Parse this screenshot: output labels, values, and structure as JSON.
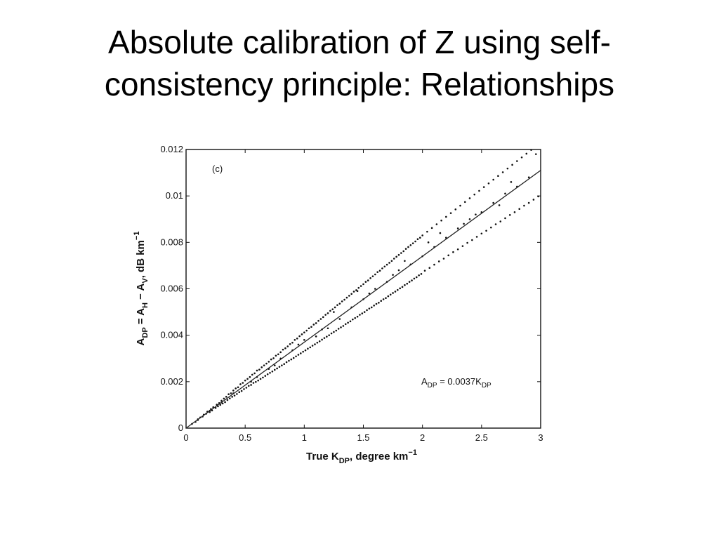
{
  "slide": {
    "title_line1": "Absolute calibration of Z using self-",
    "title_line2": "consistency principle: Relationships"
  },
  "chart_data": {
    "type": "scatter",
    "panel_label": "(c)",
    "xlabel": {
      "main": "True K",
      "sub": "DP",
      "rest": ", degree km",
      "sup": "−1"
    },
    "ylabel": {
      "a": "A",
      "a_sub": "DP",
      "b": " = A",
      "b_sub": "H",
      "c": " − A",
      "c_sub": "V",
      "d": ", dB km",
      "d_sup": "−1"
    },
    "xlim": [
      0,
      3
    ],
    "ylim": [
      0,
      0.012
    ],
    "xticks": [
      "0",
      "0.5",
      "1",
      "1.5",
      "2",
      "2.5",
      "3"
    ],
    "yticks": [
      "0",
      "0.002",
      "0.004",
      "0.006",
      "0.008",
      "0.01",
      "0.012"
    ],
    "fit_line": {
      "slope": 0.0037,
      "points": [
        [
          0,
          0
        ],
        [
          3,
          0.0111
        ]
      ]
    },
    "annotation": {
      "a": "A",
      "a_sub": "DP",
      "eq": " = 0.0037K",
      "k_sub": "DP"
    },
    "points": [
      [
        0.05,
        0.00018
      ],
      [
        0.08,
        0.00027
      ],
      [
        0.1,
        0.00035
      ],
      [
        0.12,
        0.00046
      ],
      [
        0.14,
        0.0005
      ],
      [
        0.15,
        0.00058
      ],
      [
        0.17,
        0.00062
      ],
      [
        0.18,
        0.00071
      ],
      [
        0.2,
        0.00069
      ],
      [
        0.21,
        0.00082
      ],
      [
        0.22,
        0.00076
      ],
      [
        0.23,
        0.0009
      ],
      [
        0.25,
        0.00087
      ],
      [
        0.26,
        0.00101
      ],
      [
        0.27,
        0.00094
      ],
      [
        0.28,
        0.00108
      ],
      [
        0.29,
        0.001
      ],
      [
        0.3,
        0.00118
      ],
      [
        0.31,
        0.00106
      ],
      [
        0.32,
        0.00127
      ],
      [
        0.33,
        0.00112
      ],
      [
        0.34,
        0.00135
      ],
      [
        0.35,
        0.00121
      ],
      [
        0.36,
        0.00146
      ],
      [
        0.37,
        0.00128
      ],
      [
        0.38,
        0.0015
      ],
      [
        0.39,
        0.00135
      ],
      [
        0.4,
        0.00162
      ],
      [
        0.41,
        0.0014
      ],
      [
        0.42,
        0.00171
      ],
      [
        0.43,
        0.00147
      ],
      [
        0.44,
        0.00176
      ],
      [
        0.45,
        0.00155
      ],
      [
        0.46,
        0.00189
      ],
      [
        0.47,
        0.0016
      ],
      [
        0.48,
        0.00195
      ],
      [
        0.49,
        0.00168
      ],
      [
        0.5,
        0.00205
      ],
      [
        0.51,
        0.00174
      ],
      [
        0.52,
        0.00212
      ],
      [
        0.53,
        0.00182
      ],
      [
        0.54,
        0.0022
      ],
      [
        0.55,
        0.00186
      ],
      [
        0.56,
        0.0023
      ],
      [
        0.57,
        0.00195
      ],
      [
        0.58,
        0.00236
      ],
      [
        0.59,
        0.00199
      ],
      [
        0.6,
        0.00248
      ],
      [
        0.61,
        0.00205
      ],
      [
        0.62,
        0.00252
      ],
      [
        0.63,
        0.00212
      ],
      [
        0.64,
        0.00262
      ],
      [
        0.65,
        0.00218
      ],
      [
        0.66,
        0.0027
      ],
      [
        0.67,
        0.00225
      ],
      [
        0.68,
        0.00278
      ],
      [
        0.69,
        0.00232
      ],
      [
        0.7,
        0.00286
      ],
      [
        0.71,
        0.00238
      ],
      [
        0.72,
        0.00296
      ],
      [
        0.73,
        0.00244
      ],
      [
        0.74,
        0.00301
      ],
      [
        0.75,
        0.00251
      ],
      [
        0.76,
        0.00312
      ],
      [
        0.77,
        0.00257
      ],
      [
        0.78,
        0.00318
      ],
      [
        0.79,
        0.00264
      ],
      [
        0.8,
        0.00327
      ],
      [
        0.81,
        0.0027
      ],
      [
        0.82,
        0.00338
      ],
      [
        0.83,
        0.00276
      ],
      [
        0.84,
        0.00344
      ],
      [
        0.85,
        0.00284
      ],
      [
        0.86,
        0.00352
      ],
      [
        0.87,
        0.0029
      ],
      [
        0.88,
        0.00362
      ],
      [
        0.89,
        0.00296
      ],
      [
        0.9,
        0.00368
      ],
      [
        0.91,
        0.00302
      ],
      [
        0.92,
        0.0038
      ],
      [
        0.93,
        0.00309
      ],
      [
        0.94,
        0.00386
      ],
      [
        0.95,
        0.00316
      ],
      [
        0.96,
        0.00396
      ],
      [
        0.97,
        0.00322
      ],
      [
        0.98,
        0.00404
      ],
      [
        0.99,
        0.00329
      ],
      [
        1.0,
        0.00412
      ],
      [
        1.01,
        0.00335
      ],
      [
        1.02,
        0.0042
      ],
      [
        1.03,
        0.00342
      ],
      [
        1.04,
        0.0043
      ],
      [
        1.05,
        0.00348
      ],
      [
        1.06,
        0.00436
      ],
      [
        1.07,
        0.00355
      ],
      [
        1.08,
        0.00446
      ],
      [
        1.09,
        0.00361
      ],
      [
        1.1,
        0.00452
      ],
      [
        1.11,
        0.00368
      ],
      [
        1.12,
        0.00462
      ],
      [
        1.13,
        0.00374
      ],
      [
        1.14,
        0.0047
      ],
      [
        1.15,
        0.00381
      ],
      [
        1.16,
        0.00478
      ],
      [
        1.17,
        0.00388
      ],
      [
        1.18,
        0.00488
      ],
      [
        1.19,
        0.00394
      ],
      [
        1.2,
        0.00495
      ],
      [
        1.21,
        0.004
      ],
      [
        1.22,
        0.00505
      ],
      [
        1.23,
        0.00408
      ],
      [
        1.24,
        0.00512
      ],
      [
        1.25,
        0.00414
      ],
      [
        1.26,
        0.0052
      ],
      [
        1.27,
        0.0042
      ],
      [
        1.28,
        0.0053
      ],
      [
        1.29,
        0.00428
      ],
      [
        1.3,
        0.00536
      ],
      [
        1.31,
        0.00434
      ],
      [
        1.32,
        0.00546
      ],
      [
        1.33,
        0.0044
      ],
      [
        1.34,
        0.00553
      ],
      [
        1.35,
        0.00448
      ],
      [
        1.36,
        0.00562
      ],
      [
        1.37,
        0.00454
      ],
      [
        1.38,
        0.0057
      ],
      [
        1.39,
        0.0046
      ],
      [
        1.4,
        0.00578
      ],
      [
        1.41,
        0.00468
      ],
      [
        1.42,
        0.00588
      ],
      [
        1.43,
        0.00474
      ],
      [
        1.44,
        0.00594
      ],
      [
        1.45,
        0.0048
      ],
      [
        1.46,
        0.00604
      ],
      [
        1.47,
        0.00488
      ],
      [
        1.48,
        0.00612
      ],
      [
        1.49,
        0.00494
      ],
      [
        1.5,
        0.0062
      ],
      [
        1.51,
        0.005
      ],
      [
        1.52,
        0.0063
      ],
      [
        1.53,
        0.00508
      ],
      [
        1.54,
        0.00636
      ],
      [
        1.55,
        0.00515
      ],
      [
        1.56,
        0.00646
      ],
      [
        1.57,
        0.0052
      ],
      [
        1.58,
        0.00654
      ],
      [
        1.59,
        0.00528
      ],
      [
        1.6,
        0.00662
      ],
      [
        1.61,
        0.00535
      ],
      [
        1.62,
        0.00672
      ],
      [
        1.63,
        0.0054
      ],
      [
        1.64,
        0.00678
      ],
      [
        1.65,
        0.00548
      ],
      [
        1.66,
        0.00688
      ],
      [
        1.67,
        0.00555
      ],
      [
        1.68,
        0.00696
      ],
      [
        1.69,
        0.0056
      ],
      [
        1.7,
        0.00704
      ],
      [
        1.71,
        0.00568
      ],
      [
        1.72,
        0.00712
      ],
      [
        1.73,
        0.00575
      ],
      [
        1.74,
        0.0072
      ],
      [
        1.75,
        0.00582
      ],
      [
        1.76,
        0.0073
      ],
      [
        1.77,
        0.00588
      ],
      [
        1.78,
        0.00738
      ],
      [
        1.79,
        0.00595
      ],
      [
        1.8,
        0.00746
      ],
      [
        1.81,
        0.00602
      ],
      [
        1.82,
        0.00754
      ],
      [
        1.83,
        0.00608
      ],
      [
        1.84,
        0.00762
      ],
      [
        1.85,
        0.00616
      ],
      [
        1.86,
        0.00772
      ],
      [
        1.87,
        0.00622
      ],
      [
        1.88,
        0.0078
      ],
      [
        1.89,
        0.0063
      ],
      [
        1.9,
        0.00788
      ],
      [
        1.91,
        0.00636
      ],
      [
        1.92,
        0.00796
      ],
      [
        1.93,
        0.00644
      ],
      [
        1.94,
        0.00804
      ],
      [
        1.95,
        0.0065
      ],
      [
        1.96,
        0.00814
      ],
      [
        1.97,
        0.00658
      ],
      [
        1.98,
        0.0082
      ],
      [
        1.99,
        0.00664
      ],
      [
        2.0,
        0.0083
      ],
      [
        2.02,
        0.00678
      ],
      [
        2.04,
        0.00846
      ],
      [
        2.06,
        0.0069
      ],
      [
        2.08,
        0.00862
      ],
      [
        2.1,
        0.00704
      ],
      [
        2.12,
        0.00878
      ],
      [
        2.14,
        0.00718
      ],
      [
        2.16,
        0.00894
      ],
      [
        2.18,
        0.0073
      ],
      [
        2.2,
        0.0091
      ],
      [
        2.22,
        0.00744
      ],
      [
        2.24,
        0.00926
      ],
      [
        2.26,
        0.00758
      ],
      [
        2.28,
        0.00942
      ],
      [
        2.3,
        0.0077
      ],
      [
        2.32,
        0.00958
      ],
      [
        2.34,
        0.00784
      ],
      [
        2.36,
        0.00974
      ],
      [
        2.38,
        0.00798
      ],
      [
        2.4,
        0.0099
      ],
      [
        2.42,
        0.0081
      ],
      [
        2.44,
        0.01006
      ],
      [
        2.46,
        0.00824
      ],
      [
        2.48,
        0.01022
      ],
      [
        2.5,
        0.00838
      ],
      [
        2.52,
        0.01038
      ],
      [
        2.54,
        0.0085
      ],
      [
        2.56,
        0.01054
      ],
      [
        2.58,
        0.00864
      ],
      [
        2.6,
        0.0107
      ],
      [
        2.62,
        0.00878
      ],
      [
        2.64,
        0.01086
      ],
      [
        2.66,
        0.0089
      ],
      [
        2.68,
        0.01102
      ],
      [
        2.7,
        0.00904
      ],
      [
        2.72,
        0.01118
      ],
      [
        2.74,
        0.00918
      ],
      [
        2.76,
        0.01134
      ],
      [
        2.78,
        0.0093
      ],
      [
        2.8,
        0.0115
      ],
      [
        2.82,
        0.00944
      ],
      [
        2.84,
        0.01166
      ],
      [
        2.86,
        0.00958
      ],
      [
        2.88,
        0.01182
      ],
      [
        2.9,
        0.0097
      ],
      [
        2.92,
        0.01198
      ],
      [
        2.94,
        0.00984
      ],
      [
        2.96,
        0.0118
      ],
      [
        2.98,
        0.00998
      ],
      [
        1.0,
        0.0038
      ],
      [
        1.2,
        0.0043
      ],
      [
        1.4,
        0.0052
      ],
      [
        1.6,
        0.006
      ],
      [
        1.8,
        0.0068
      ],
      [
        2.0,
        0.0074
      ],
      [
        2.2,
        0.0082
      ],
      [
        2.4,
        0.009
      ],
      [
        2.6,
        0.0097
      ],
      [
        2.8,
        0.0104
      ],
      [
        0.6,
        0.0022
      ],
      [
        0.8,
        0.003
      ],
      [
        0.4,
        0.0015
      ],
      [
        1.1,
        0.00395
      ],
      [
        1.3,
        0.0047
      ],
      [
        1.5,
        0.00555
      ],
      [
        1.7,
        0.0063
      ],
      [
        1.9,
        0.00705
      ],
      [
        2.1,
        0.0078
      ],
      [
        2.3,
        0.0086
      ],
      [
        2.5,
        0.0093
      ],
      [
        2.7,
        0.0101
      ],
      [
        2.9,
        0.0108
      ],
      [
        0.7,
        0.00255
      ],
      [
        0.9,
        0.00335
      ],
      [
        0.3,
        0.0011
      ],
      [
        0.2,
        0.00075
      ],
      [
        0.1,
        0.00038
      ],
      [
        1.45,
        0.0059
      ],
      [
        1.75,
        0.0066
      ],
      [
        2.05,
        0.008
      ],
      [
        2.35,
        0.0088
      ],
      [
        2.65,
        0.0096
      ],
      [
        1.25,
        0.005
      ],
      [
        1.55,
        0.0058
      ],
      [
        1.85,
        0.0072
      ],
      [
        2.15,
        0.0084
      ],
      [
        2.45,
        0.0092
      ],
      [
        2.75,
        0.0106
      ],
      [
        0.55,
        0.002
      ],
      [
        0.75,
        0.0027
      ],
      [
        0.95,
        0.0036
      ],
      [
        1.15,
        0.00425
      ]
    ]
  }
}
